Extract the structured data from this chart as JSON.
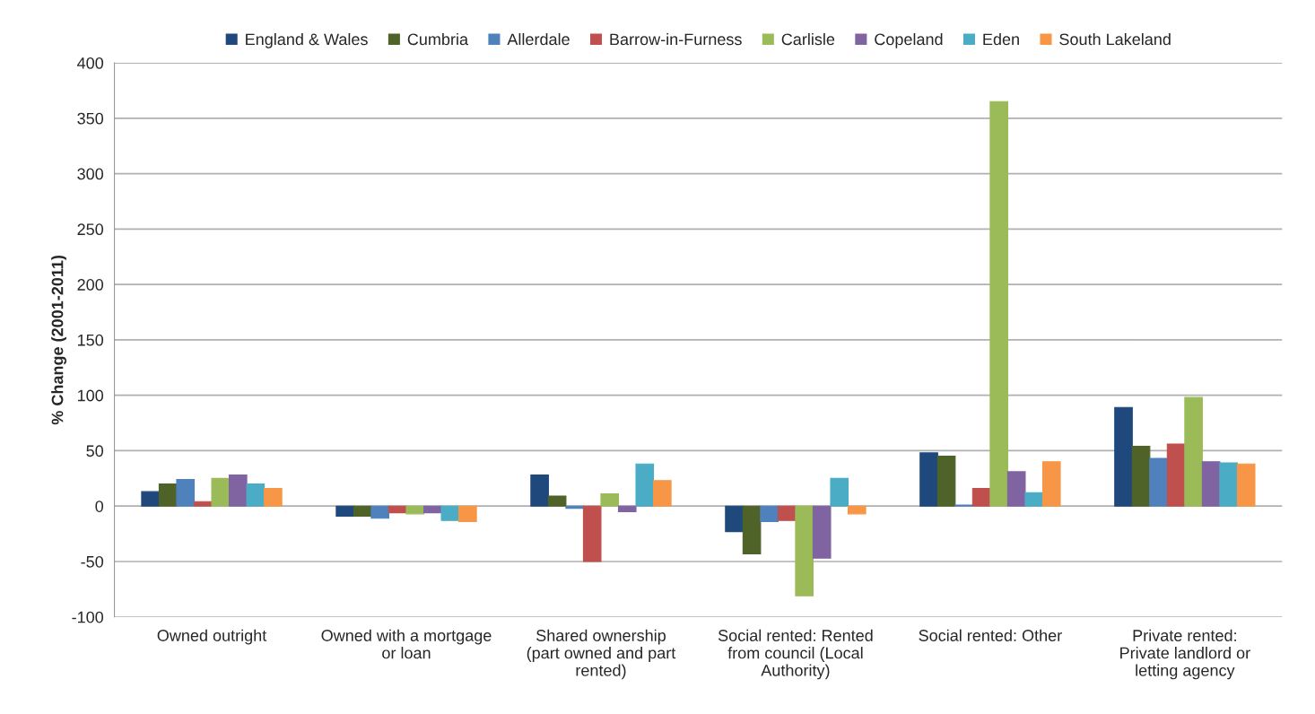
{
  "chart_data": {
    "type": "bar",
    "ylabel": "% Change (2001-2011)",
    "categories": [
      "Owned outright",
      "Owned with a mortgage or loan",
      "Shared ownership (part owned and part rented)",
      "Social rented: Rented from council (Local Authority)",
      "Social rented: Other",
      "Private rented: Private landlord or letting agency"
    ],
    "series": [
      {
        "name": "England & Wales",
        "color": "#1f497d",
        "values": [
          13,
          -9,
          28,
          -23,
          48,
          89
        ]
      },
      {
        "name": "Cumbria",
        "color": "#4f6228",
        "values": [
          20,
          -9,
          9,
          -43,
          45,
          54
        ]
      },
      {
        "name": "Allerdale",
        "color": "#4f81bd",
        "values": [
          24,
          -11,
          -2,
          -14,
          1,
          43
        ]
      },
      {
        "name": "Barrow-in-Furness",
        "color": "#c0504d",
        "values": [
          4,
          -6,
          -50,
          -13,
          16,
          56
        ]
      },
      {
        "name": "Carlisle",
        "color": "#9bbb59",
        "values": [
          25,
          -7,
          11,
          -81,
          365,
          98
        ]
      },
      {
        "name": "Copeland",
        "color": "#8064a2",
        "values": [
          28,
          -6,
          -5,
          -47,
          31,
          40
        ]
      },
      {
        "name": "Eden",
        "color": "#4bacc6",
        "values": [
          20,
          -13,
          38,
          25,
          12,
          39
        ]
      },
      {
        "name": "South Lakeland",
        "color": "#f79646",
        "values": [
          16,
          -14,
          23,
          -7,
          40,
          38
        ]
      }
    ],
    "ylim": [
      -100,
      400
    ],
    "yticks": [
      -100,
      -50,
      0,
      50,
      100,
      150,
      200,
      250,
      300,
      350,
      400
    ],
    "grid": "y",
    "legend": "top"
  }
}
